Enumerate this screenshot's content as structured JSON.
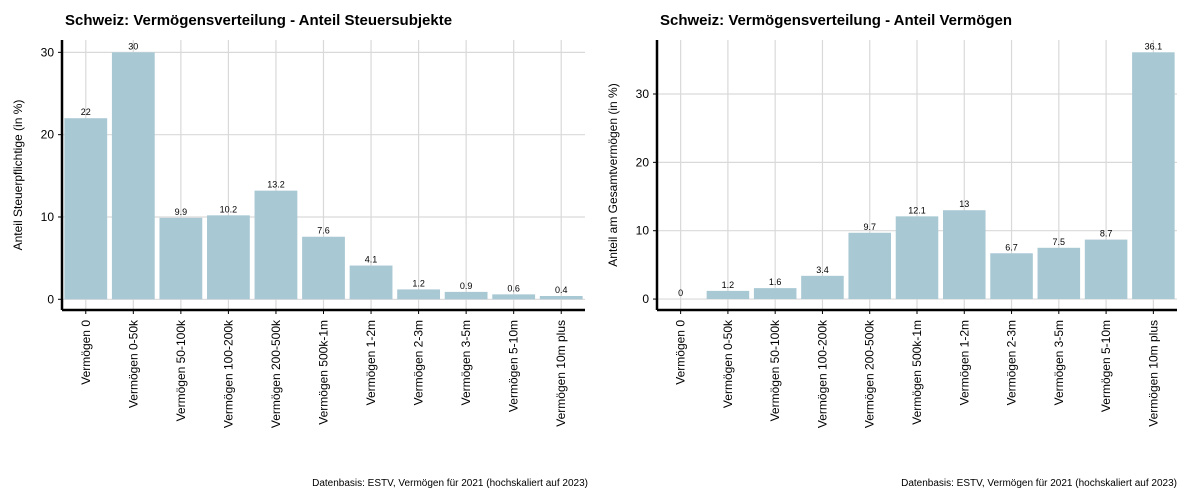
{
  "chart_data": [
    {
      "type": "bar",
      "title": "Schweiz: Vermögensverteilung - Anteil Steuersubjekte",
      "y_label": "Anteil Steuerpflichtige (in %)",
      "categories": [
        "Vermögen 0",
        "Vermögen 0-50k",
        "Vermögen 50-100k",
        "Vermögen 100-200k",
        "Vermögen 200-500k",
        "Vermögen 500k-1m",
        "Vermögen 1-2m",
        "Vermögen 2-3m",
        "Vermögen 3-5m",
        "Vermögen 5-10m",
        "Vermögen 10m plus"
      ],
      "values": [
        22,
        30,
        9.9,
        10.2,
        13.2,
        7.6,
        4.1,
        1.2,
        0.9,
        0.6,
        0.4
      ],
      "color": "#a8c8d4",
      "ylim": [
        -1.3,
        31.5
      ],
      "yticks": [
        0,
        10,
        20,
        30
      ],
      "grid": true,
      "caption": "Datenbasis: ESTV, Vermögen für 2021 (hochskaliert auf 2023)"
    },
    {
      "type": "bar",
      "title": "Schweiz: Vermögensverteilung - Anteil Vermögen",
      "y_label": "Anteil am Gesamtvermögen (in %)",
      "categories": [
        "Vermögen 0",
        "Vermögen 0-50k",
        "Vermögen 50-100k",
        "Vermögen 100-200k",
        "Vermögen 200-500k",
        "Vermögen 500k-1m",
        "Vermögen 1-2m",
        "Vermögen 2-3m",
        "Vermögen 3-5m",
        "Vermögen 5-10m",
        "Vermögen 10m plus"
      ],
      "values": [
        0,
        1.2,
        1.6,
        3.4,
        9.7,
        12.1,
        13,
        6.7,
        7.5,
        8.7,
        36.1
      ],
      "color": "#a8c8d4",
      "ylim": [
        -1.6,
        37.9
      ],
      "yticks": [
        0,
        10,
        20,
        30
      ],
      "grid": true,
      "caption": "Datenbasis: ESTV, Vermögen für 2021 (hochskaliert auf 2023)"
    }
  ]
}
